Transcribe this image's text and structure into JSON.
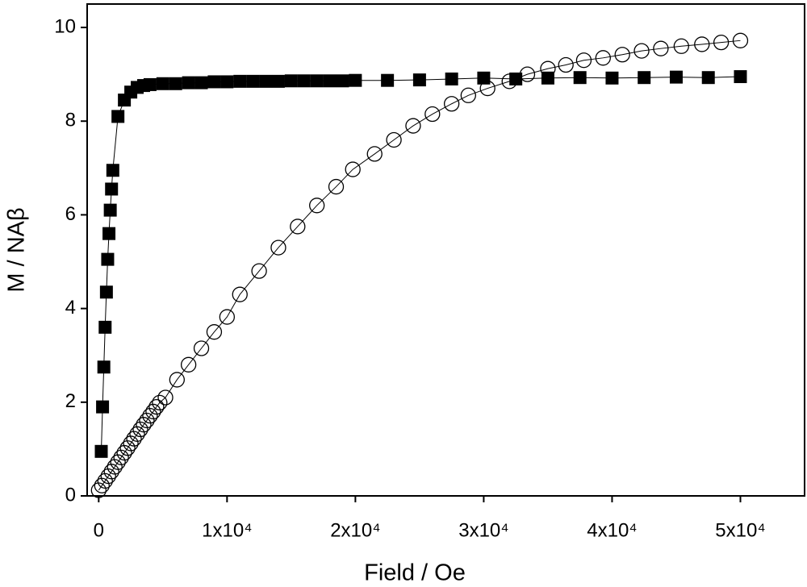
{
  "chart_data": {
    "type": "line",
    "x_label": "Field / Oe",
    "y_label": "M / NAβ",
    "xlim": [
      -900,
      55000
    ],
    "ylim": [
      0,
      10.5
    ],
    "xticks": [
      0,
      {
        "value": 10000,
        "label": "1x10⁴"
      },
      {
        "value": 20000,
        "label": "2x10⁴"
      },
      {
        "value": 30000,
        "label": "3x10⁴"
      },
      {
        "value": 40000,
        "label": "4x10⁴"
      },
      {
        "value": 50000,
        "label": "5x10⁴"
      }
    ],
    "yticks": [
      0,
      2,
      4,
      6,
      8,
      10
    ],
    "series": [
      {
        "marker": "square",
        "color": "#000000",
        "x": [
          200,
          300,
          400,
          500,
          600,
          700,
          800,
          900,
          1000,
          1100,
          1500,
          2000,
          2500,
          3000,
          3500,
          4000,
          5000,
          6000,
          7000,
          8000,
          9000,
          10000,
          11000,
          12000,
          13000,
          14000,
          15000,
          16000,
          17000,
          18000,
          19000,
          20000,
          22500,
          25000,
          27500,
          30000,
          32500,
          35000,
          37500,
          40000,
          42500,
          45000,
          47500,
          50000
        ],
        "values": [
          0.95,
          1.9,
          2.75,
          3.6,
          4.35,
          5.05,
          5.6,
          6.1,
          6.55,
          6.95,
          8.1,
          8.45,
          8.62,
          8.72,
          8.76,
          8.78,
          8.8,
          8.8,
          8.82,
          8.82,
          8.84,
          8.84,
          8.85,
          8.85,
          8.85,
          8.85,
          8.86,
          8.86,
          8.86,
          8.86,
          8.86,
          8.87,
          8.87,
          8.88,
          8.9,
          8.92,
          8.9,
          8.92,
          8.93,
          8.92,
          8.93,
          8.94,
          8.93,
          8.95
        ]
      },
      {
        "marker": "circle",
        "color": "#000000",
        "x": [
          0,
          250,
          500,
          750,
          1000,
          1250,
          1500,
          1750,
          2000,
          2250,
          2500,
          2750,
          3000,
          3250,
          3500,
          3750,
          4000,
          4250,
          4500,
          4750,
          5200,
          6100,
          7000,
          8000,
          9000,
          10000,
          11000,
          12500,
          14000,
          15500,
          17000,
          18500,
          19800,
          21500,
          23000,
          24500,
          26000,
          27500,
          28800,
          30300,
          32000,
          33400,
          35000,
          36400,
          37800,
          39300,
          40800,
          42300,
          43800,
          45400,
          47000,
          48500,
          50000
        ],
        "values": [
          0.12,
          0.22,
          0.32,
          0.42,
          0.52,
          0.62,
          0.72,
          0.82,
          0.92,
          1.02,
          1.12,
          1.22,
          1.32,
          1.42,
          1.52,
          1.61,
          1.71,
          1.8,
          1.9,
          1.99,
          2.1,
          2.48,
          2.8,
          3.15,
          3.5,
          3.82,
          4.3,
          4.8,
          5.3,
          5.75,
          6.2,
          6.6,
          6.97,
          7.3,
          7.6,
          7.9,
          8.15,
          8.37,
          8.55,
          8.7,
          8.85,
          9.0,
          9.12,
          9.2,
          9.3,
          9.35,
          9.42,
          9.5,
          9.55,
          9.6,
          9.64,
          9.68,
          9.72
        ]
      }
    ]
  }
}
